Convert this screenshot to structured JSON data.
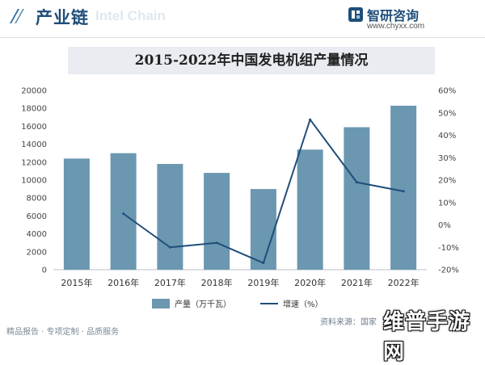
{
  "header": {
    "section_title": "产业链",
    "watermark_text": "Intel Chain",
    "logo_name": "智研咨询",
    "logo_url": "www.chyxx.com"
  },
  "chart_data": {
    "type": "bar",
    "title": "2015-2022年中国发电机组产量情况",
    "categories": [
      "2015年",
      "2016年",
      "2017年",
      "2018年",
      "2019年",
      "2020年",
      "2021年",
      "2022年"
    ],
    "series": [
      {
        "name": "产量（万千瓦）",
        "type": "bar",
        "axis": "left",
        "color": "#6b97b0",
        "values": [
          12400,
          13000,
          11800,
          10800,
          9000,
          13400,
          15900,
          18300
        ]
      },
      {
        "name": "增速（%）",
        "type": "line",
        "axis": "right",
        "color": "#1f4e7a",
        "values": [
          null,
          5,
          -10,
          -8,
          -17,
          47,
          19,
          15
        ]
      }
    ],
    "ylim_left": [
      0,
      20000
    ],
    "yticks_left": [
      "0",
      "2000",
      "4000",
      "6000",
      "8000",
      "10000",
      "12000",
      "14000",
      "16000",
      "18000",
      "20000"
    ],
    "ylim_right": [
      -20,
      60
    ],
    "yticks_right": [
      "-20%",
      "-10%",
      "0%",
      "10%",
      "20%",
      "30%",
      "40%",
      "50%",
      "60%"
    ],
    "grid": false,
    "legend_position": "bottom"
  },
  "footer": {
    "left_text": "精品报告 · 专项定制 · 品质服务",
    "source_text": "资料来源：国家",
    "corner_brand": "维普手游网"
  }
}
